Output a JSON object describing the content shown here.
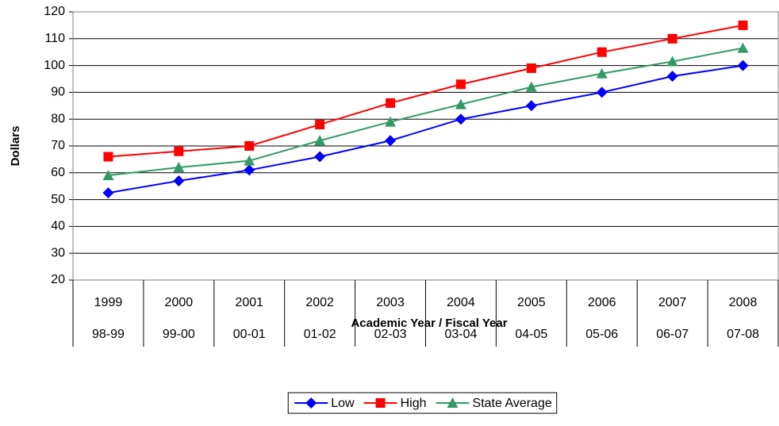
{
  "chart_data": {
    "type": "line",
    "y_label": "Dollars",
    "x_label": "Academic Year / Fiscal Year",
    "categories": [
      "1999",
      "2000",
      "2001",
      "2002",
      "2003",
      "2004",
      "2005",
      "2006",
      "2007",
      "2008"
    ],
    "category_sublabels": [
      "98-99",
      "99-00",
      "00-01",
      "01-02",
      "02-03",
      "03-04",
      "04-05",
      "05-06",
      "06-07",
      "07-08"
    ],
    "series": [
      {
        "name": "Low",
        "color": "#0000ff",
        "marker": "diamond",
        "values": [
          52.5,
          57,
          61,
          66,
          72,
          80,
          85,
          90,
          96,
          100
        ]
      },
      {
        "name": "High",
        "color": "#ff0000",
        "marker": "square",
        "values": [
          66,
          68,
          70,
          78,
          86,
          93,
          99,
          105,
          110,
          115
        ]
      },
      {
        "name": "State Average",
        "color": "#339966",
        "marker": "triangle",
        "values": [
          59,
          62,
          64.5,
          72,
          79,
          85.5,
          92,
          97,
          101.5,
          106.5
        ]
      }
    ],
    "ylim": [
      20,
      120
    ],
    "yticks": [
      20,
      30,
      40,
      50,
      60,
      70,
      80,
      90,
      100,
      110,
      120
    ],
    "grid": true,
    "legend": "bottom"
  }
}
